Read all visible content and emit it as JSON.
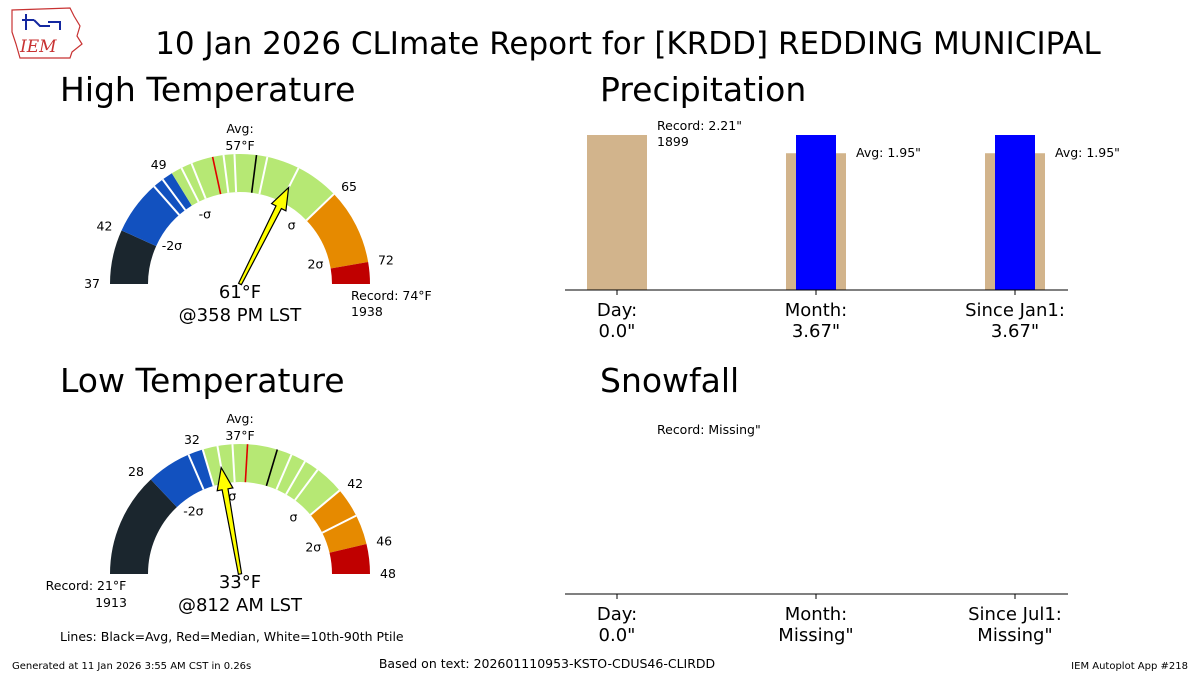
{
  "logo_text": "IEM",
  "title": "10 Jan 2026 CLImate Report for [KRDD] REDDING MUNICIPAL",
  "footer": {
    "left": "Generated at 11 Jan 2026 3:55 AM CST in 0.26s",
    "center": "Based on text: 202601110953-KSTO-CDUS46-CLIRDD",
    "right": "IEM Autoplot App #218",
    "legend": "Lines: Black=Avg, Red=Median, White=10th-90th Ptile"
  },
  "colors": {
    "below_2s": "#1b262e",
    "below_1s": "#1251bf",
    "normal": "#b6e874",
    "above_1s": "#e68a00",
    "above_2s": "#c00000",
    "arrow": "#ffff00",
    "bar_record": "#d2b48c",
    "bar_obs": "#0000ff"
  },
  "chart_data": [
    {
      "type": "gauge",
      "id": "high",
      "title": "High Temperature",
      "range": [
        37,
        74
      ],
      "observed": 61,
      "value_label": "61°F",
      "time_label": "@358 PM LST",
      "avg": 57,
      "avg_label": "Avg:",
      "avg_value_label": "57°F",
      "median": 53,
      "percentiles": [
        47,
        48,
        50,
        51,
        54,
        55,
        58,
        61,
        65
      ],
      "bands": [
        {
          "from": 37,
          "to": 42,
          "color": "#1b262e"
        },
        {
          "from": 42,
          "to": 49,
          "color": "#1251bf"
        },
        {
          "from": 49,
          "to": 65,
          "color": "#b6e874"
        },
        {
          "from": 65,
          "to": 72,
          "color": "#e68a00"
        },
        {
          "from": 72,
          "to": 74,
          "color": "#c00000"
        }
      ],
      "ticks": [
        {
          "value": 37,
          "label": "37"
        },
        {
          "value": 42,
          "label": "42"
        },
        {
          "value": 49,
          "label": "49"
        },
        {
          "value": 65,
          "label": "65"
        },
        {
          "value": 72,
          "label": "72"
        }
      ],
      "sigma_labels": [
        {
          "value": 43,
          "label": "-2σ"
        },
        {
          "value": 50,
          "label": "-σ"
        },
        {
          "value": 64,
          "label": "σ"
        },
        {
          "value": 71,
          "label": "2σ"
        }
      ],
      "record_label": "Record: 74°F",
      "record_year": "1938"
    },
    {
      "type": "gauge",
      "id": "low",
      "title": "Low Temperature",
      "range": [
        21,
        48
      ],
      "observed": 33,
      "value_label": "33°F",
      "time_label": "@812 AM LST",
      "avg": 37,
      "avg_label": "Avg:",
      "avg_value_label": "37°F",
      "median": 35,
      "percentiles": [
        31,
        32,
        33,
        34,
        38,
        39,
        40,
        42,
        44
      ],
      "bands": [
        {
          "from": 21,
          "to": 28,
          "color": "#1b262e"
        },
        {
          "from": 28,
          "to": 32,
          "color": "#1251bf"
        },
        {
          "from": 32,
          "to": 42,
          "color": "#b6e874"
        },
        {
          "from": 42,
          "to": 46,
          "color": "#e68a00"
        },
        {
          "from": 46,
          "to": 48,
          "color": "#c00000"
        }
      ],
      "ticks": [
        {
          "value": 28,
          "label": "28"
        },
        {
          "value": 32,
          "label": "32"
        },
        {
          "value": 42,
          "label": "42"
        },
        {
          "value": 46,
          "label": "46"
        },
        {
          "value": 48,
          "label": "48"
        }
      ],
      "sigma_labels": [
        {
          "value": 29,
          "label": "-2σ"
        },
        {
          "value": 33.4,
          "label": "-σ"
        },
        {
          "value": 41,
          "label": "σ"
        },
        {
          "value": 45,
          "label": "2σ"
        }
      ],
      "record_label": "Record: 21°F",
      "record_year": "1913"
    },
    {
      "type": "bar",
      "id": "precip",
      "title": "Precipitation",
      "ylim": [
        0,
        2.21
      ],
      "categories": [
        {
          "line1": "Day:",
          "line2": "0.0\"",
          "record": 2.21,
          "avg": null,
          "obs": 0.0,
          "annotation_lines": [
            "Record: 2.21\"",
            "1899"
          ]
        },
        {
          "line1": "Month:",
          "line2": "3.67\"",
          "record": null,
          "avg": 1.95,
          "obs": 3.67,
          "annotation_lines": [
            "Avg: 1.95\""
          ]
        },
        {
          "line1": "Since Jan1:",
          "line2": "3.67\"",
          "record": null,
          "avg": 1.95,
          "obs": 3.67,
          "annotation_lines": [
            "Avg: 1.95\""
          ]
        }
      ]
    },
    {
      "type": "bar",
      "id": "snow",
      "title": "Snowfall",
      "ylim": [
        0,
        1
      ],
      "categories": [
        {
          "line1": "Day:",
          "line2": "0.0\"",
          "record": null,
          "avg": null,
          "obs": 0.0,
          "annotation_lines": [
            "Record: Missing\""
          ]
        },
        {
          "line1": "Month:",
          "line2": "Missing\"",
          "record": null,
          "avg": null,
          "obs": null,
          "annotation_lines": []
        },
        {
          "line1": "Since Jul1:",
          "line2": "Missing\"",
          "record": null,
          "avg": null,
          "obs": null,
          "annotation_lines": []
        }
      ]
    }
  ]
}
